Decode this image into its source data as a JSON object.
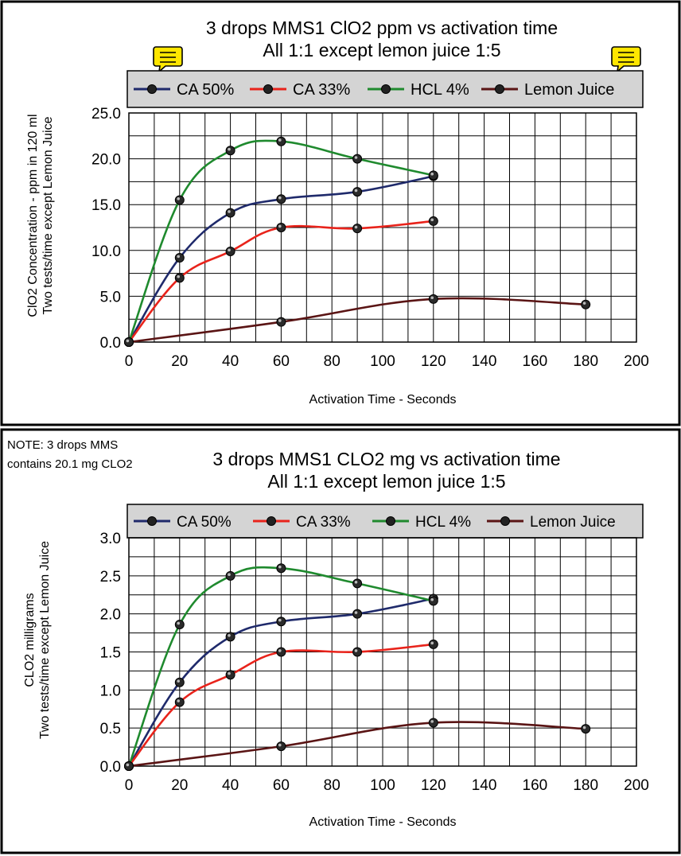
{
  "colors": {
    "ca50": "#1f2a6b",
    "ca33": "#e8231b",
    "hcl4": "#1f8a2e",
    "lemon": "#5a1414",
    "legend_bg": "#d4d4d4",
    "grid": "#000000",
    "note_icon_bg": "#ffe600"
  },
  "chart_data": [
    {
      "type": "line",
      "title": "3 drops MMS1 ClO2 ppm vs activation time",
      "subtitle": "All 1:1 except lemon juice 1:5",
      "xlabel": "Activation Time - Seconds",
      "ylabel": [
        "ClO2 Concentration - ppm in 120 ml",
        "Two tests/time except Lemon Juice"
      ],
      "xlim": [
        0,
        200
      ],
      "ylim": [
        0,
        25
      ],
      "xticks": [
        0,
        20,
        40,
        60,
        80,
        100,
        120,
        140,
        160,
        180,
        200
      ],
      "yticks": [
        0,
        5,
        10,
        15,
        20,
        25
      ],
      "ytick_labels": [
        "0.0",
        "5.0",
        "10.0",
        "15.0",
        "20.0",
        "25.0"
      ],
      "grid": true,
      "legend_position": "top",
      "icons": [
        "note-icon",
        "note-icon"
      ],
      "series": [
        {
          "name": "CA 50%",
          "color_key": "ca50",
          "x": [
            0,
            20,
            40,
            60,
            90,
            120
          ],
          "y": [
            0,
            9.2,
            14.1,
            15.6,
            16.4,
            18.1
          ]
        },
        {
          "name": "CA 33%",
          "color_key": "ca33",
          "x": [
            0,
            20,
            40,
            60,
            90,
            120
          ],
          "y": [
            0,
            7.0,
            9.9,
            12.5,
            12.4,
            13.2
          ]
        },
        {
          "name": "HCL 4%",
          "color_key": "hcl4",
          "x": [
            0,
            20,
            40,
            60,
            90,
            120
          ],
          "y": [
            0,
            15.5,
            20.9,
            21.9,
            20.0,
            18.2
          ]
        },
        {
          "name": "Lemon Juice",
          "color_key": "lemon",
          "x": [
            0,
            60,
            120,
            180
          ],
          "y": [
            0,
            2.2,
            4.7,
            4.1
          ]
        }
      ]
    },
    {
      "type": "line",
      "note": [
        "NOTE: 3 drops MMS",
        "contains 20.1 mg CLO2"
      ],
      "title": "3 drops MMS1 CLO2 mg vs activation time",
      "subtitle": "All 1:1 except lemon juice 1:5",
      "xlabel": "Activation Time - Seconds",
      "ylabel": [
        "CLO2 milligrams",
        "Two tests/time except Lemon Juice"
      ],
      "xlim": [
        0,
        200
      ],
      "ylim": [
        0,
        3
      ],
      "xticks": [
        0,
        20,
        40,
        60,
        80,
        100,
        120,
        140,
        160,
        180,
        200
      ],
      "yticks": [
        0,
        0.5,
        1,
        1.5,
        2,
        2.5,
        3
      ],
      "ytick_labels": [
        "0.0",
        "0.5",
        "1.0",
        "1.5",
        "2.0",
        "2.5",
        "3.0"
      ],
      "grid": true,
      "legend_position": "top",
      "series": [
        {
          "name": "CA 50%",
          "color_key": "ca50",
          "x": [
            0,
            20,
            40,
            60,
            90,
            120
          ],
          "y": [
            0,
            1.1,
            1.7,
            1.9,
            2.0,
            2.2
          ]
        },
        {
          "name": "CA 33%",
          "color_key": "ca33",
          "x": [
            0,
            20,
            40,
            60,
            90,
            120
          ],
          "y": [
            0,
            0.84,
            1.2,
            1.5,
            1.5,
            1.6
          ]
        },
        {
          "name": "HCL 4%",
          "color_key": "hcl4",
          "x": [
            0,
            20,
            40,
            60,
            90,
            120
          ],
          "y": [
            0,
            1.86,
            2.5,
            2.6,
            2.4,
            2.17
          ]
        },
        {
          "name": "Lemon Juice",
          "color_key": "lemon",
          "x": [
            0,
            60,
            120,
            180
          ],
          "y": [
            0,
            0.26,
            0.57,
            0.49
          ]
        }
      ]
    }
  ]
}
